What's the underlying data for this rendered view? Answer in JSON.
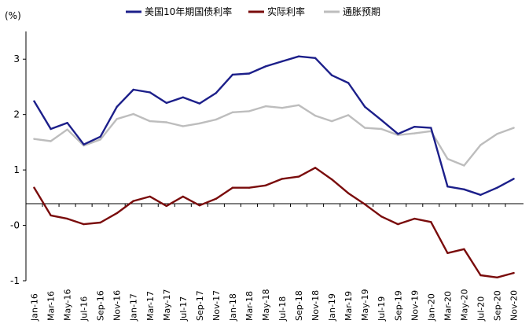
{
  "chart_data": {
    "type": "line",
    "y_unit": "(%)",
    "ylim": [
      -1,
      3.5
    ],
    "yticks": [
      "-1",
      "-0",
      "1",
      "2",
      "3"
    ],
    "ytick_values": [
      -1,
      0,
      1,
      2,
      3
    ],
    "grid": false,
    "legend_position": "top",
    "x_tick_labels": [
      "Jan-16",
      "Mar-16",
      "May-16",
      "Jul-16",
      "Sep-16",
      "Nov-16",
      "Jan-17",
      "Mar-17",
      "May-17",
      "Jul-17",
      "Sep-17",
      "Nov-17",
      "Jan-18",
      "Mar-18",
      "May-18",
      "Jul-18",
      "Sep-18",
      "Nov-18",
      "Jan-19",
      "Mar-19",
      "May-19",
      "Jul-19",
      "Sep-19",
      "Nov-19",
      "Jan-20",
      "Mar-20",
      "May-20",
      "Jul-20",
      "Sep-20",
      "Nov-20"
    ],
    "x_months": [
      "2016-01",
      "2016-03",
      "2016-05",
      "2016-07",
      "2016-09",
      "2016-11",
      "2017-01",
      "2017-03",
      "2017-05",
      "2017-07",
      "2017-09",
      "2017-11",
      "2018-01",
      "2018-03",
      "2018-05",
      "2018-07",
      "2018-09",
      "2018-11",
      "2019-01",
      "2019-03",
      "2019-05",
      "2019-07",
      "2019-09",
      "2019-11",
      "2020-01",
      "2020-03",
      "2020-05",
      "2020-07",
      "2020-09",
      "2020-11"
    ],
    "series": [
      {
        "name": "美国10年期国债利率",
        "color": "#1c1f8a",
        "values": [
          2.24,
          1.74,
          1.85,
          1.46,
          1.6,
          2.14,
          2.45,
          2.4,
          2.21,
          2.31,
          2.2,
          2.39,
          2.72,
          2.74,
          2.87,
          2.96,
          3.05,
          3.02,
          2.71,
          2.57,
          2.14,
          1.9,
          1.65,
          1.78,
          1.76,
          0.7,
          0.65,
          0.55,
          0.68,
          0.84
        ]
      },
      {
        "name": "实际利率",
        "color": "#7a0c0c",
        "values": [
          0.68,
          0.18,
          0.12,
          0.02,
          0.05,
          0.22,
          0.44,
          0.52,
          0.35,
          0.52,
          0.36,
          0.48,
          0.68,
          0.68,
          0.72,
          0.84,
          0.88,
          1.04,
          0.83,
          0.58,
          0.38,
          0.16,
          0.02,
          0.12,
          0.06,
          -0.5,
          -0.43,
          -0.9,
          -0.94,
          -0.86
        ]
      },
      {
        "name": "通胀预期",
        "color": "#bdbdbd",
        "values": [
          1.56,
          1.52,
          1.73,
          1.44,
          1.55,
          1.92,
          2.01,
          1.88,
          1.86,
          1.79,
          1.84,
          1.91,
          2.04,
          2.06,
          2.15,
          2.12,
          2.17,
          1.98,
          1.88,
          1.99,
          1.76,
          1.74,
          1.63,
          1.66,
          1.7,
          1.2,
          1.08,
          1.45,
          1.65,
          1.76
        ]
      }
    ]
  }
}
